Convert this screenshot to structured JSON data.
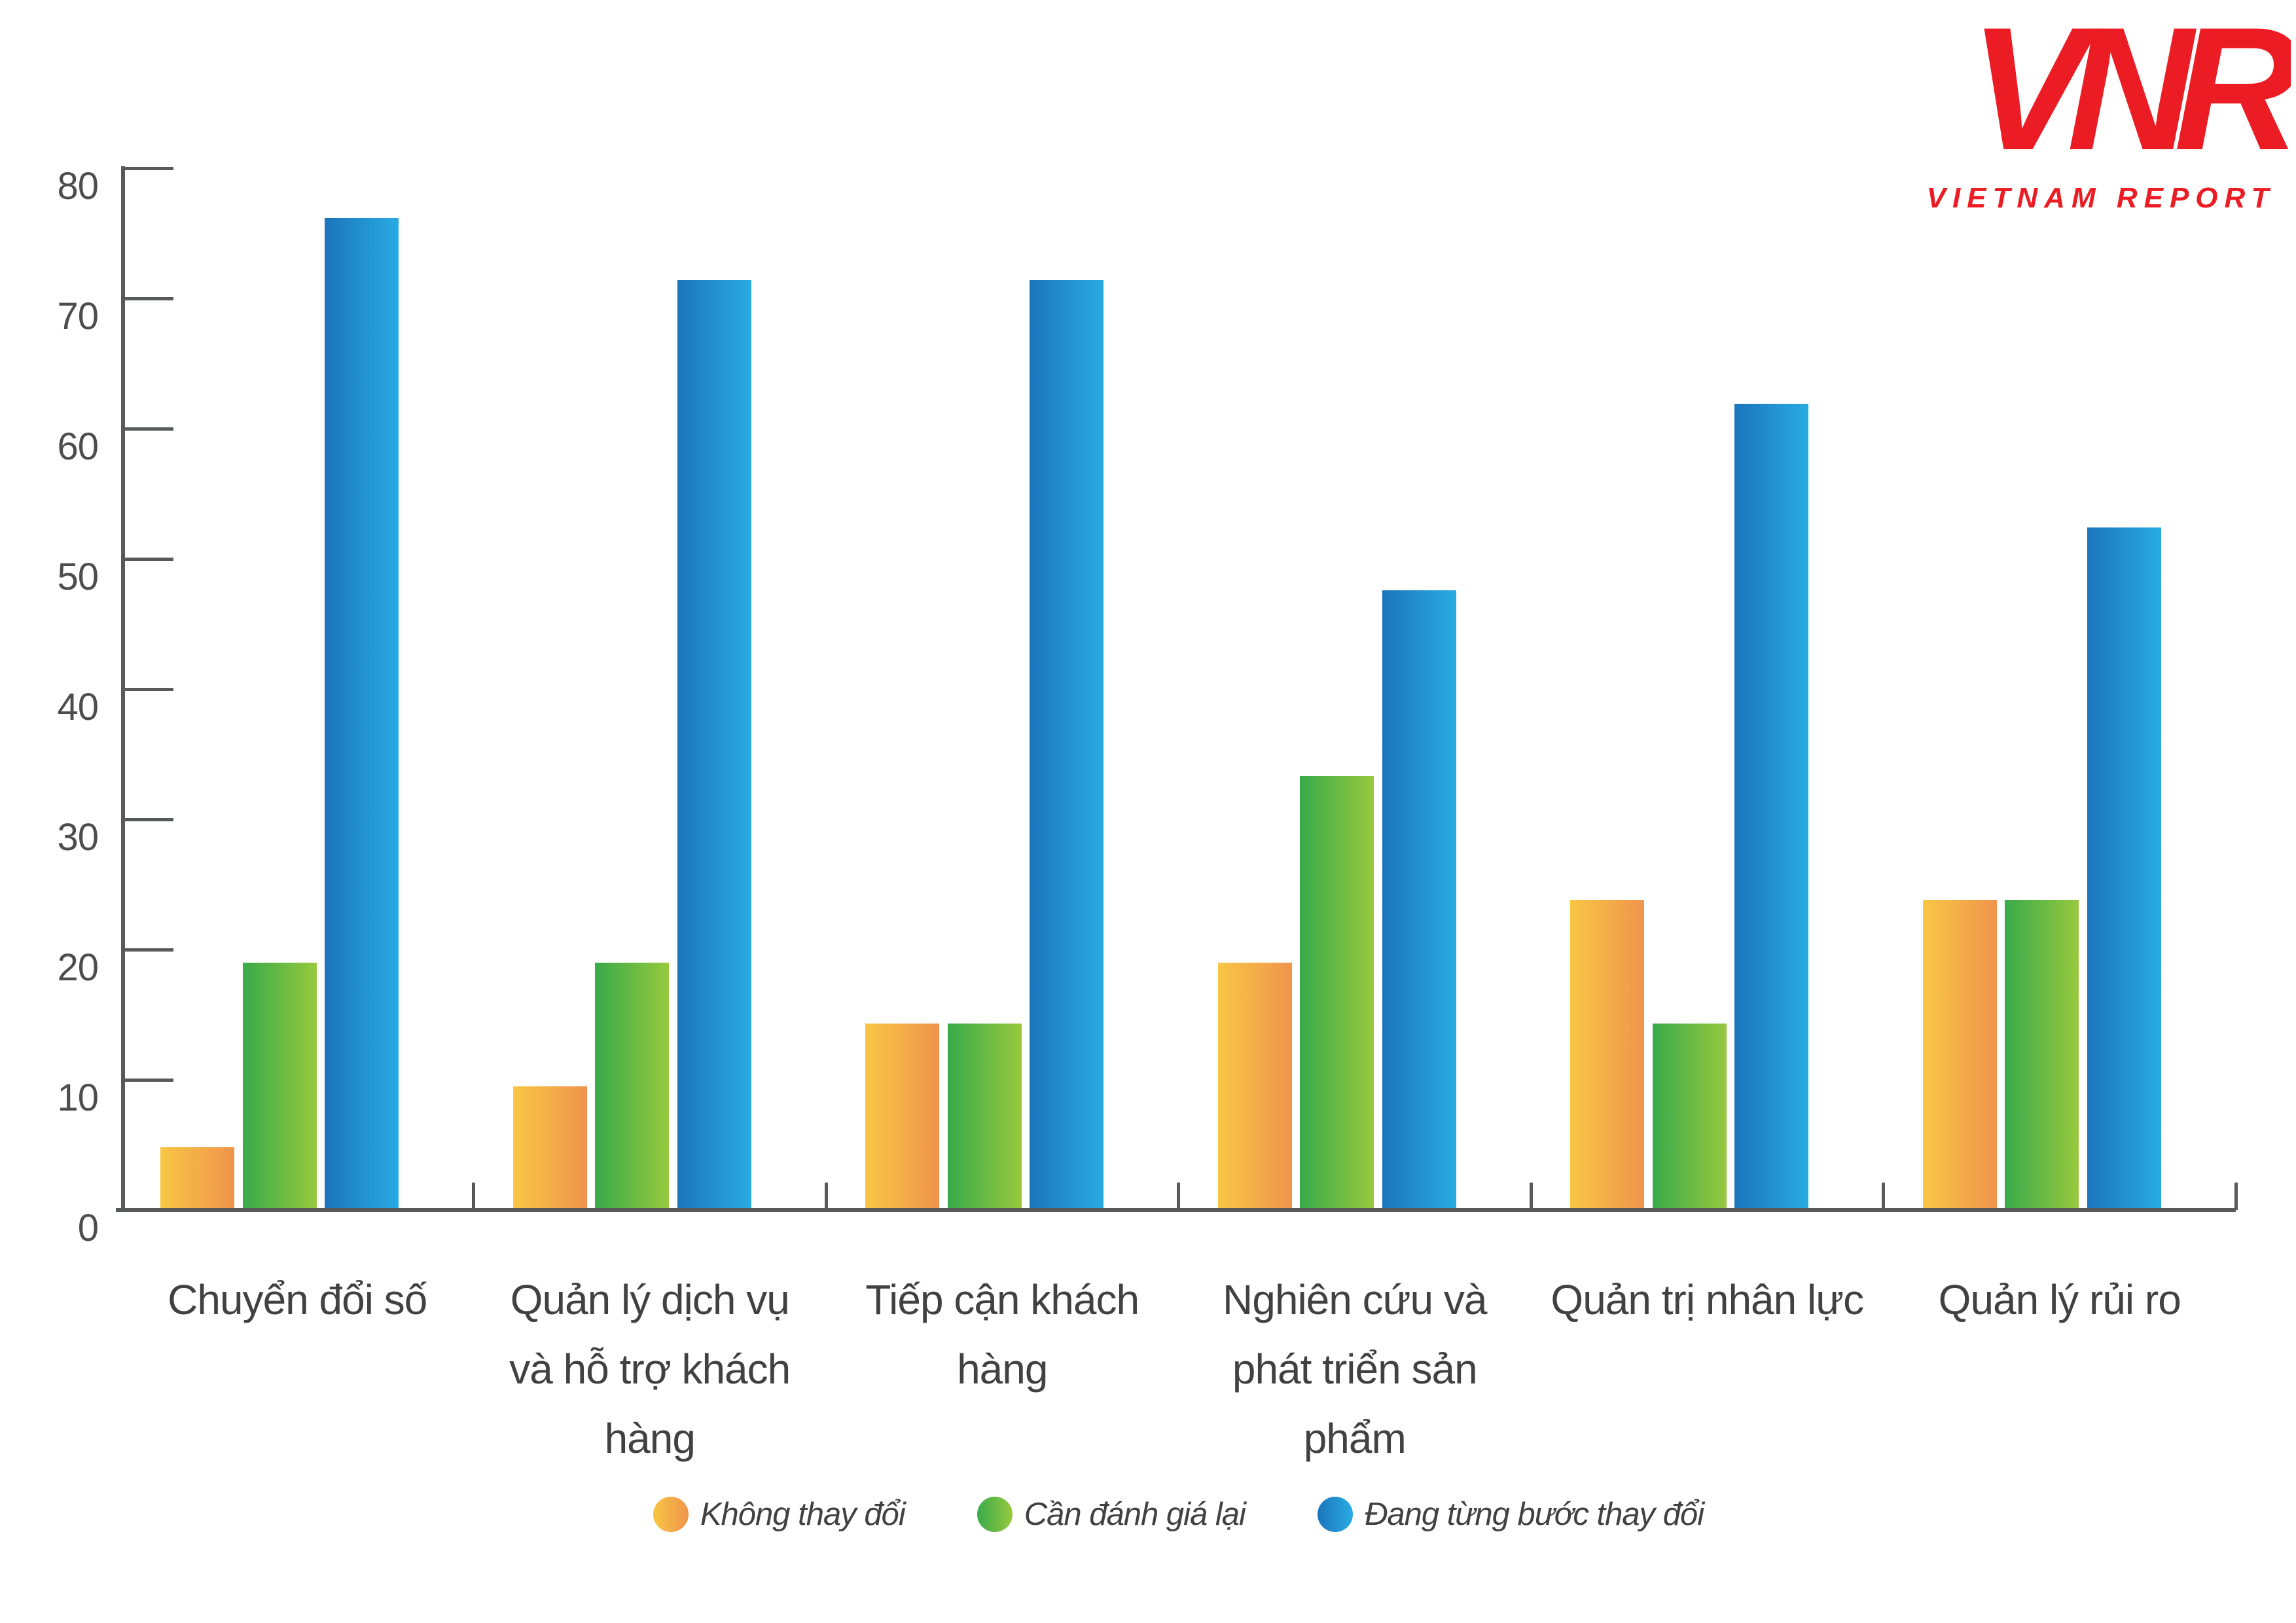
{
  "logo": {
    "monogram": "VNR",
    "text": "VIETNAM REPORT",
    "color": "#ec1c24"
  },
  "axis": {
    "line_color": "#58595b",
    "tick_label_color": "#4d4d4f",
    "category_label_color": "#414042"
  },
  "chart_data": {
    "type": "bar",
    "title": "",
    "xlabel": "",
    "ylabel": "",
    "ylim": [
      0,
      80
    ],
    "yticks": [
      0,
      10,
      20,
      30,
      40,
      50,
      60,
      70,
      80
    ],
    "grid": false,
    "legend_position": "bottom",
    "categories": [
      {
        "label": "Chuyển đổi số",
        "lines": [
          "Chuyển đổi số"
        ]
      },
      {
        "label": "Quản lý dịch vụ và hỗ trợ khách hàng",
        "lines": [
          "Quản lý dịch vụ",
          "và hỗ trợ khách hàng"
        ]
      },
      {
        "label": "Tiếp cận khách hàng",
        "lines": [
          "Tiếp cận khách hàng"
        ]
      },
      {
        "label": "Nghiên cứu và phát triển sản phẩm",
        "lines": [
          "Nghiên cứu và",
          "phát triển sản phẩm"
        ]
      },
      {
        "label": "Quản trị nhân lực",
        "lines": [
          "Quản trị nhân lực"
        ]
      },
      {
        "label": "Quản lý rủi ro",
        "lines": [
          "Quản lý rủi ro"
        ]
      }
    ],
    "series": [
      {
        "name": "Không thay đổi",
        "color_start": "#f8c645",
        "color_end": "#f0944c",
        "values": [
          4.8,
          9.5,
          14.3,
          19.0,
          23.8,
          23.8
        ]
      },
      {
        "name": "Cần đánh giá lại",
        "color_start": "#38aa4a",
        "color_end": "#97c93e",
        "values": [
          19.0,
          19.0,
          14.3,
          33.3,
          14.3,
          23.8
        ]
      },
      {
        "name": "Đang từng bước thay đổi",
        "color_start": "#1b75bc",
        "color_end": "#29abe2",
        "values": [
          76.2,
          71.4,
          71.4,
          47.6,
          61.9,
          52.4
        ]
      }
    ]
  }
}
